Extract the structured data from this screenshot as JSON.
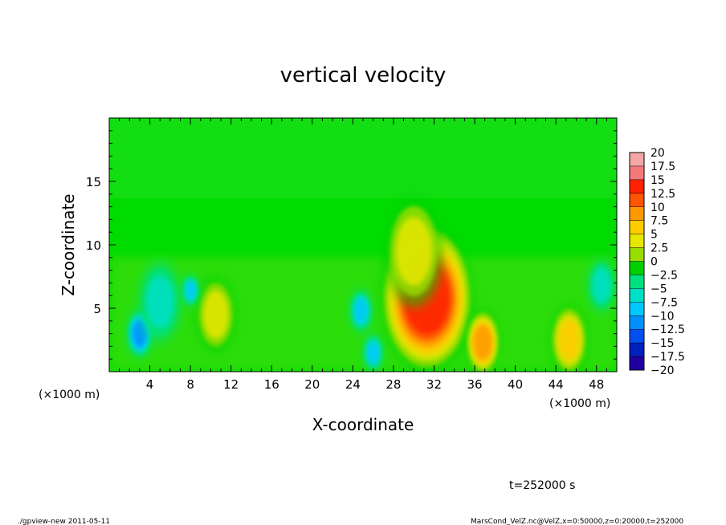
{
  "chart_data": {
    "type": "heatmap",
    "title": "vertical velocity",
    "xlabel": "X-coordinate",
    "ylabel": "Z-coordinate",
    "x_unit": "(×1000 m)",
    "z_unit": "(×1000 m)",
    "xlim": [
      0,
      50
    ],
    "ylim": [
      0,
      20
    ],
    "x_ticks": [
      4,
      8,
      12,
      16,
      20,
      24,
      28,
      32,
      36,
      40,
      44,
      48
    ],
    "y_ticks": [
      5,
      10,
      15
    ],
    "colorbar": {
      "levels": [
        "20",
        "17.5",
        "15",
        "12.5",
        "10",
        "7.5",
        "5",
        "2.5",
        "0",
        "−2.5",
        "−5",
        "−7.5",
        "−10",
        "−12.5",
        "−15",
        "−17.5",
        "−20"
      ],
      "colors": [
        "#f4a6a6",
        "#f47a7a",
        "#ff2200",
        "#ff5500",
        "#ff9900",
        "#ffcc00",
        "#e6e600",
        "#99dd00",
        "#00d000",
        "#00e080",
        "#00e0c8",
        "#00c8ff",
        "#0090ff",
        "#0050f0",
        "#0020c0",
        "#2000a0",
        "#6020c0"
      ]
    },
    "features": [
      {
        "x": 31.3,
        "z": 5.8,
        "w": 3.2,
        "value": 15
      },
      {
        "x": 30.0,
        "z": 9.5,
        "w": 2.0,
        "value": 6
      },
      {
        "x": 36.8,
        "z": 2.3,
        "w": 1.2,
        "value": 9
      },
      {
        "x": 45.3,
        "z": 2.5,
        "w": 1.3,
        "value": 7
      },
      {
        "x": 10.5,
        "z": 4.5,
        "w": 1.4,
        "value": 4
      },
      {
        "x": 3.0,
        "z": 3.0,
        "w": 0.9,
        "value": -9
      },
      {
        "x": 8.0,
        "z": 6.4,
        "w": 0.6,
        "value": -7
      },
      {
        "x": 24.8,
        "z": 4.8,
        "w": 0.8,
        "value": -8
      },
      {
        "x": 26.0,
        "z": 1.5,
        "w": 0.7,
        "value": -7
      },
      {
        "x": 5.0,
        "z": 5.5,
        "w": 1.5,
        "value": -4
      },
      {
        "x": 48.5,
        "z": 6.8,
        "w": 1.0,
        "value": -4
      }
    ]
  },
  "annotations": {
    "time": "t=252000 s",
    "footer_left": "./gpview-new  2011-05-11",
    "footer_right": "MarsCond_VelZ.nc@VelZ,x=0:50000,z=0:20000,t=252000"
  }
}
